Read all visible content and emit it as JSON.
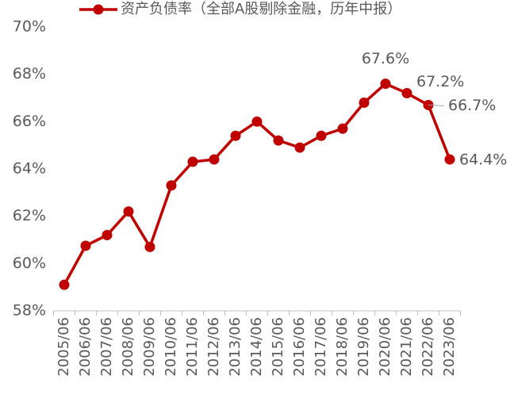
{
  "chart_data": {
    "type": "line",
    "categories": [
      "2005/06",
      "2006/06",
      "2007/06",
      "2008/06",
      "2009/06",
      "2010/06",
      "2011/06",
      "2012/06",
      "2013/06",
      "2014/06",
      "2015/06",
      "2016/06",
      "2017/06",
      "2018/06",
      "2019/06",
      "2020/06",
      "2021/06",
      "2022/06",
      "2023/06"
    ],
    "series": [
      {
        "name": "资产负债率（全部A股剔除金融，历年中报）",
        "color": "#c00000",
        "values": [
          59.1,
          60.75,
          61.2,
          62.2,
          60.7,
          63.3,
          64.3,
          64.4,
          65.4,
          66.0,
          65.2,
          64.9,
          65.4,
          65.7,
          66.8,
          67.6,
          67.2,
          66.7,
          64.4
        ],
        "value_labels": [
          null,
          null,
          null,
          null,
          null,
          null,
          null,
          null,
          null,
          null,
          null,
          null,
          null,
          null,
          null,
          "67.6%",
          "67.2%",
          "66.7%",
          "64.4%"
        ]
      }
    ],
    "ylim": [
      58,
      70
    ],
    "yticks": [
      {
        "value": 58,
        "label": "58%"
      },
      {
        "value": 60,
        "label": "60%"
      },
      {
        "value": 62,
        "label": "62%"
      },
      {
        "value": 64,
        "label": "64%"
      },
      {
        "value": 66,
        "label": "66%"
      },
      {
        "value": 68,
        "label": "68%"
      },
      {
        "value": 70,
        "label": "70%"
      }
    ],
    "legend": "top",
    "grid": false
  }
}
